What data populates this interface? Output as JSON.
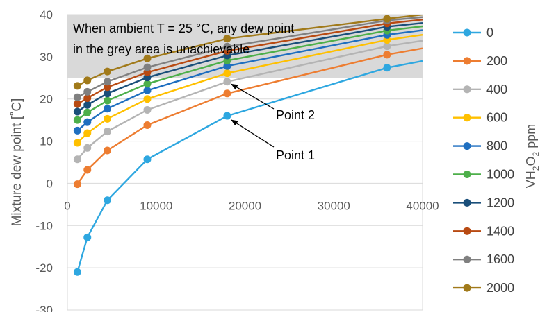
{
  "chart_data": {
    "type": "line",
    "title": "",
    "xlabel": "",
    "ylabel": "Mixture dew point [˚C]",
    "xlim": [
      0,
      40000
    ],
    "ylim": [
      -30,
      40
    ],
    "xticks": [
      0,
      10000,
      20000,
      30000,
      40000
    ],
    "yticks": [
      -30,
      -20,
      -10,
      0,
      10,
      20,
      30,
      40
    ],
    "grid": true,
    "legend_placement": "right",
    "legend_title": {
      "main": "VH",
      "sub1": "2",
      "mid": "O",
      "sub2": "2",
      "tail": " ppm"
    },
    "shaded_region": {
      "y_from": 25,
      "y_to": 40,
      "color": "#d9d9d9"
    },
    "annotations": [
      {
        "text": "When ambient T = 25 °C, any dew point"
      },
      {
        "text": "in the grey area is unachievable"
      },
      {
        "text": "Point 2",
        "arrow_to": [
          18000,
          24.0
        ]
      },
      {
        "text": "Point 1",
        "arrow_to": [
          18000,
          16.0
        ]
      }
    ],
    "x": [
      1125,
      2250,
      4500,
      9000,
      18000,
      36000
    ],
    "x_extend": 40000,
    "series": [
      {
        "name": "0",
        "color": "#2ea7e0",
        "values": [
          -21.0,
          -12.8,
          -4.0,
          5.7,
          16.0,
          27.4
        ],
        "end": 29.0
      },
      {
        "name": "200",
        "color": "#ed7d31",
        "values": [
          -0.2,
          3.2,
          7.8,
          13.8,
          21.3,
          30.5
        ],
        "end": 32.0
      },
      {
        "name": "400",
        "color": "#b4b4b4",
        "values": [
          5.7,
          8.4,
          12.3,
          17.4,
          24.1,
          32.5
        ],
        "end": 33.8
      },
      {
        "name": "600",
        "color": "#ffc000",
        "values": [
          9.6,
          11.9,
          15.3,
          20.0,
          26.1,
          34.0
        ],
        "end": 35.2
      },
      {
        "name": "800",
        "color": "#1f6fc0",
        "values": [
          12.5,
          14.5,
          17.7,
          22.0,
          27.8,
          35.2
        ],
        "end": 36.3
      },
      {
        "name": "1000",
        "color": "#4daf4a",
        "values": [
          15.0,
          16.8,
          19.6,
          23.6,
          29.1,
          36.2
        ],
        "end": 37.2
      },
      {
        "name": "1200",
        "color": "#1a4f7a",
        "values": [
          17.0,
          18.6,
          21.3,
          25.1,
          30.3,
          37.1
        ],
        "end": 38.0
      },
      {
        "name": "1400",
        "color": "#b84a12",
        "values": [
          18.8,
          20.2,
          22.8,
          26.3,
          31.4,
          37.9
        ],
        "end": 38.8
      },
      {
        "name": "1600",
        "color": "#808080",
        "values": [
          20.4,
          21.7,
          24.1,
          27.5,
          32.4,
          38.6
        ],
        "end": 39.4
      },
      {
        "name": "2000",
        "color": "#a17a1a",
        "values": [
          23.1,
          24.4,
          26.5,
          29.6,
          34.3,
          39.0
        ],
        "end": 40.0
      }
    ]
  }
}
